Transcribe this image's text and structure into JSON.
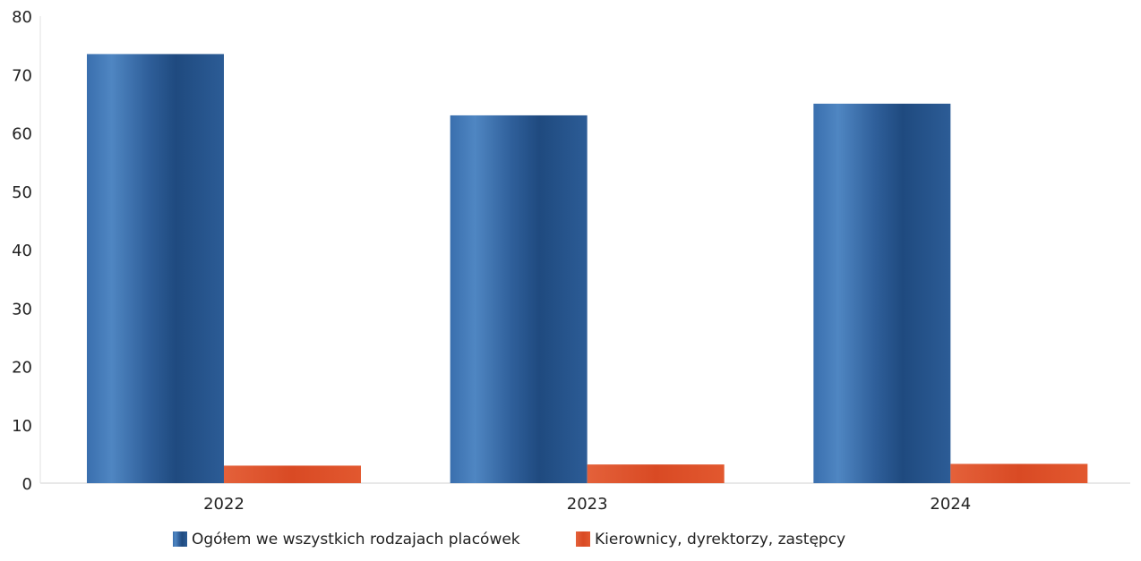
{
  "chart_data": {
    "type": "bar",
    "categories": [
      "2022",
      "2023",
      "2024"
    ],
    "series": [
      {
        "name": "Ogółem we wszystkich rodzajach placówek",
        "values": [
          73.5,
          63,
          65
        ],
        "color": "#2f5f9a"
      },
      {
        "name": "Kierownicy, dyrektorzy, zastępcy",
        "values": [
          3,
          3.2,
          3.3
        ],
        "color": "#e0542e"
      }
    ],
    "yticks": [
      0,
      10,
      20,
      30,
      40,
      50,
      60,
      70,
      80
    ],
    "ylim": [
      0,
      80
    ],
    "grid": false,
    "legend_position": "bottom-center",
    "title": "",
    "xlabel": "",
    "ylabel": ""
  }
}
